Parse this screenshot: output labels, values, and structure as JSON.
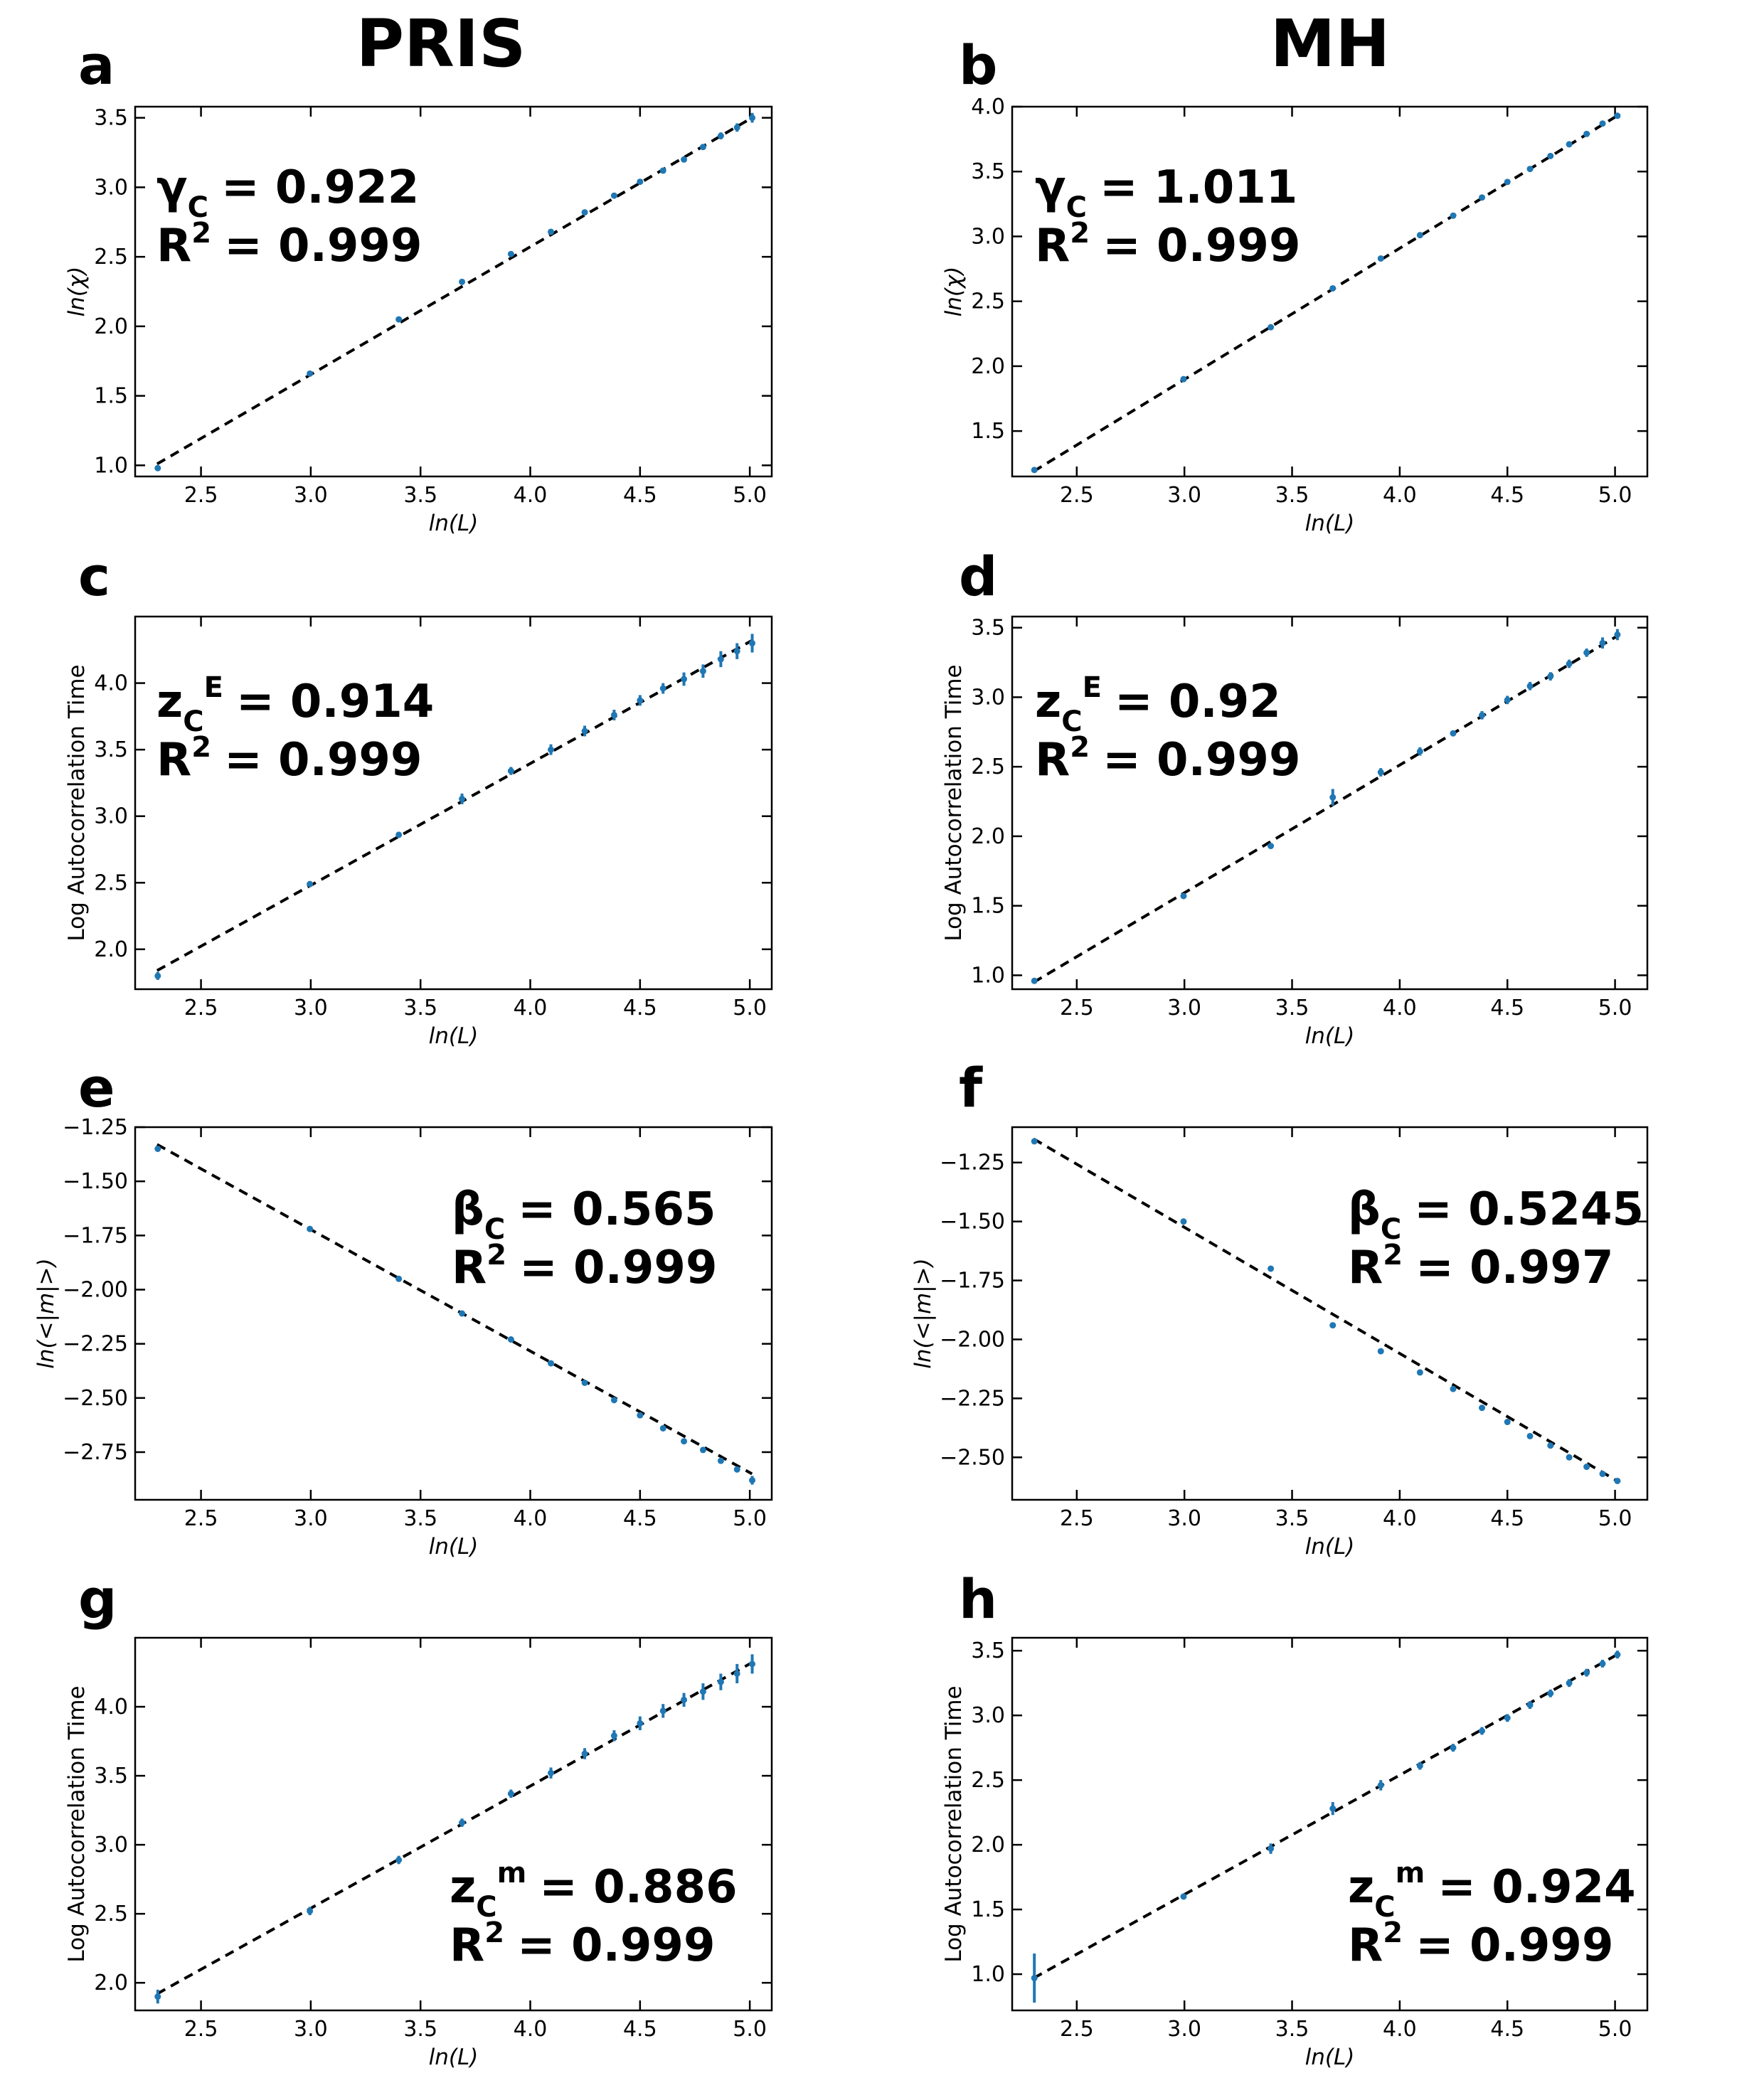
{
  "column_titles": [
    "PRIS",
    "MH"
  ],
  "colors": {
    "points": "#1f77b4",
    "fit_line": "#000000"
  },
  "chart_data": [
    {
      "id": "a",
      "type": "scatter",
      "letter": "a",
      "xlabel": "ln(L)",
      "ylabel": "ln(χ)",
      "xlim": [
        2.2,
        5.1
      ],
      "ylim": [
        0.92,
        3.58
      ],
      "xticks": [
        2.5,
        3.0,
        3.5,
        4.0,
        4.5,
        5.0
      ],
      "yticks": [
        1.0,
        1.5,
        2.0,
        2.5,
        3.0,
        3.5
      ],
      "tick_decimals": 1,
      "annotation": {
        "symbol": "γ",
        "sub": "C",
        "sup": "",
        "value": "= 0.922",
        "r2_label": "R",
        "r2_sup": "2",
        "r2_value": "= 0.999"
      },
      "fit": {
        "x": [
          2.3,
          5.01
        ],
        "y": [
          1.01,
          3.5
        ]
      },
      "points": {
        "x": [
          2.303,
          2.996,
          3.401,
          3.689,
          3.912,
          4.094,
          4.248,
          4.382,
          4.5,
          4.605,
          4.7,
          4.787,
          4.868,
          4.942,
          5.011
        ],
        "y": [
          0.98,
          1.66,
          2.05,
          2.32,
          2.52,
          2.68,
          2.82,
          2.94,
          3.04,
          3.12,
          3.2,
          3.29,
          3.37,
          3.43,
          3.5
        ],
        "err": [
          0.005,
          0.005,
          0.01,
          0.01,
          0.01,
          0.01,
          0.01,
          0.015,
          0.015,
          0.015,
          0.02,
          0.02,
          0.025,
          0.03,
          0.035
        ]
      }
    },
    {
      "id": "b",
      "type": "scatter",
      "letter": "b",
      "xlabel": "ln(L)",
      "ylabel": "ln(χ)",
      "xlim": [
        2.2,
        5.15
      ],
      "ylim": [
        1.15,
        4.0
      ],
      "xticks": [
        2.5,
        3.0,
        3.5,
        4.0,
        4.5,
        5.0
      ],
      "yticks": [
        1.5,
        2.0,
        2.5,
        3.0,
        3.5,
        4.0
      ],
      "tick_decimals": 1,
      "annotation": {
        "symbol": "γ",
        "sub": "C",
        "sup": "",
        "value": "= 1.011",
        "r2_label": "R",
        "r2_sup": "2",
        "r2_value": "= 0.999"
      },
      "fit": {
        "x": [
          2.3,
          5.01
        ],
        "y": [
          1.19,
          3.93
        ]
      },
      "points": {
        "x": [
          2.303,
          2.996,
          3.401,
          3.689,
          3.912,
          4.094,
          4.248,
          4.382,
          4.5,
          4.605,
          4.7,
          4.787,
          4.868,
          4.942,
          5.011
        ],
        "y": [
          1.2,
          1.9,
          2.3,
          2.6,
          2.83,
          3.01,
          3.16,
          3.3,
          3.42,
          3.52,
          3.62,
          3.71,
          3.79,
          3.87,
          3.93
        ],
        "err": [
          0.005,
          0.005,
          0.005,
          0.01,
          0.01,
          0.01,
          0.01,
          0.01,
          0.01,
          0.01,
          0.01,
          0.01,
          0.01,
          0.01,
          0.015
        ]
      }
    },
    {
      "id": "c",
      "type": "scatter",
      "letter": "c",
      "xlabel": "ln(L)",
      "ylabel": "Log Autocorrelation Time",
      "xlim": [
        2.2,
        5.1
      ],
      "ylim": [
        1.7,
        4.5
      ],
      "xticks": [
        2.5,
        3.0,
        3.5,
        4.0,
        4.5,
        5.0
      ],
      "yticks": [
        2.0,
        2.5,
        3.0,
        3.5,
        4.0
      ],
      "tick_decimals": 1,
      "annotation": {
        "symbol": "z",
        "sub": "C",
        "sup": "E",
        "value": "= 0.914",
        "r2_label": "R",
        "r2_sup": "2",
        "r2_value": "= 0.999"
      },
      "fit": {
        "x": [
          2.3,
          5.01
        ],
        "y": [
          1.84,
          4.32
        ]
      },
      "points": {
        "x": [
          2.303,
          2.996,
          3.401,
          3.689,
          3.912,
          4.094,
          4.248,
          4.382,
          4.5,
          4.605,
          4.7,
          4.787,
          4.868,
          4.942,
          5.011
        ],
        "y": [
          1.8,
          2.49,
          2.86,
          3.13,
          3.34,
          3.5,
          3.64,
          3.76,
          3.87,
          3.96,
          4.03,
          4.09,
          4.18,
          4.24,
          4.3
        ],
        "err": [
          0.03,
          0.01,
          0.02,
          0.04,
          0.03,
          0.04,
          0.04,
          0.04,
          0.04,
          0.04,
          0.05,
          0.05,
          0.06,
          0.06,
          0.07
        ]
      }
    },
    {
      "id": "d",
      "type": "scatter",
      "letter": "d",
      "xlabel": "ln(L)",
      "ylabel": "Log Autocorrelation Time",
      "xlim": [
        2.2,
        5.15
      ],
      "ylim": [
        0.9,
        3.58
      ],
      "xticks": [
        2.5,
        3.0,
        3.5,
        4.0,
        4.5,
        5.0
      ],
      "yticks": [
        1.0,
        1.5,
        2.0,
        2.5,
        3.0,
        3.5
      ],
      "tick_decimals": 1,
      "annotation": {
        "symbol": "z",
        "sub": "C",
        "sup": "E",
        "value": "= 0.92",
        "r2_label": "R",
        "r2_sup": "2",
        "r2_value": "= 0.999"
      },
      "fit": {
        "x": [
          2.3,
          5.01
        ],
        "y": [
          0.95,
          3.44
        ]
      },
      "points": {
        "x": [
          2.303,
          2.996,
          3.401,
          3.689,
          3.912,
          4.094,
          4.248,
          4.382,
          4.5,
          4.605,
          4.7,
          4.787,
          4.868,
          4.942,
          5.011
        ],
        "y": [
          0.96,
          1.57,
          1.93,
          2.28,
          2.46,
          2.61,
          2.74,
          2.87,
          2.98,
          3.08,
          3.15,
          3.24,
          3.32,
          3.39,
          3.45
        ],
        "err": [
          0.01,
          0.01,
          0.02,
          0.06,
          0.03,
          0.03,
          0.02,
          0.03,
          0.03,
          0.03,
          0.03,
          0.03,
          0.03,
          0.04,
          0.04
        ]
      }
    },
    {
      "id": "e",
      "type": "scatter",
      "letter": "e",
      "xlabel": "ln(L)",
      "ylabel": "ln(<|m|>)",
      "xlim": [
        2.2,
        5.1
      ],
      "ylim": [
        -2.97,
        -1.25
      ],
      "xticks": [
        2.5,
        3.0,
        3.5,
        4.0,
        4.5,
        5.0
      ],
      "yticks": [
        -1.25,
        -1.5,
        -1.75,
        -2.0,
        -2.25,
        -2.5,
        -2.75
      ],
      "tick_decimals": 2,
      "annotation": {
        "symbol": "β",
        "sub": "C",
        "sup": "",
        "value": "= 0.565",
        "r2_label": "R",
        "r2_sup": "2",
        "r2_value": "= 0.999"
      },
      "fit": {
        "x": [
          2.3,
          5.01
        ],
        "y": [
          -1.33,
          -2.85
        ]
      },
      "points": {
        "x": [
          2.303,
          2.996,
          3.401,
          3.689,
          3.912,
          4.094,
          4.248,
          4.382,
          4.5,
          4.605,
          4.7,
          4.787,
          4.868,
          4.942,
          5.011
        ],
        "y": [
          -1.35,
          -1.72,
          -1.95,
          -2.11,
          -2.23,
          -2.34,
          -2.43,
          -2.51,
          -2.58,
          -2.64,
          -2.7,
          -2.74,
          -2.79,
          -2.83,
          -2.88
        ],
        "err": [
          0.005,
          0.005,
          0.005,
          0.005,
          0.005,
          0.005,
          0.005,
          0.005,
          0.01,
          0.01,
          0.01,
          0.01,
          0.01,
          0.01,
          0.02
        ]
      }
    },
    {
      "id": "f",
      "type": "scatter",
      "letter": "f",
      "xlabel": "ln(L)",
      "ylabel": "ln(<|m|>)",
      "xlim": [
        2.2,
        5.15
      ],
      "ylim": [
        -2.68,
        -1.1
      ],
      "xticks": [
        2.5,
        3.0,
        3.5,
        4.0,
        4.5,
        5.0
      ],
      "yticks": [
        -1.25,
        -1.5,
        -1.75,
        -2.0,
        -2.25,
        -2.5
      ],
      "tick_decimals": 2,
      "annotation": {
        "symbol": "β",
        "sub": "C",
        "sup": "",
        "value": "= 0.5245",
        "r2_label": "R",
        "r2_sup": "2",
        "r2_value": "= 0.997"
      },
      "fit": {
        "x": [
          2.3,
          5.01
        ],
        "y": [
          -1.15,
          -2.6
        ]
      },
      "points": {
        "x": [
          2.303,
          2.996,
          3.401,
          3.689,
          3.912,
          4.094,
          4.248,
          4.382,
          4.5,
          4.605,
          4.7,
          4.787,
          4.868,
          4.942,
          5.011
        ],
        "y": [
          -1.16,
          -1.5,
          -1.7,
          -1.94,
          -2.05,
          -2.14,
          -2.21,
          -2.29,
          -2.35,
          -2.41,
          -2.45,
          -2.5,
          -2.54,
          -2.57,
          -2.6
        ],
        "err": [
          0.005,
          0.005,
          0.005,
          0.005,
          0.005,
          0.005,
          0.005,
          0.005,
          0.005,
          0.005,
          0.005,
          0.005,
          0.005,
          0.005,
          0.01
        ]
      }
    },
    {
      "id": "g",
      "type": "scatter",
      "letter": "g",
      "xlabel": "ln(L)",
      "ylabel": "Log Autocorrelation Time",
      "xlim": [
        2.2,
        5.1
      ],
      "ylim": [
        1.8,
        4.5
      ],
      "xticks": [
        2.5,
        3.0,
        3.5,
        4.0,
        4.5,
        5.0
      ],
      "yticks": [
        2.0,
        2.5,
        3.0,
        3.5,
        4.0
      ],
      "tick_decimals": 1,
      "annotation": {
        "symbol": "z",
        "sub": "C",
        "sup": "m",
        "value": "= 0.886",
        "r2_label": "R",
        "r2_sup": "2",
        "r2_value": "= 0.999"
      },
      "fit": {
        "x": [
          2.3,
          5.01
        ],
        "y": [
          1.92,
          4.32
        ]
      },
      "points": {
        "x": [
          2.303,
          2.996,
          3.401,
          3.689,
          3.912,
          4.094,
          4.248,
          4.382,
          4.5,
          4.605,
          4.7,
          4.787,
          4.868,
          4.942,
          5.011
        ],
        "y": [
          1.9,
          2.52,
          2.89,
          3.16,
          3.37,
          3.52,
          3.66,
          3.79,
          3.88,
          3.97,
          4.05,
          4.11,
          4.18,
          4.24,
          4.31
        ],
        "err": [
          0.05,
          0.03,
          0.03,
          0.03,
          0.03,
          0.04,
          0.04,
          0.04,
          0.05,
          0.05,
          0.05,
          0.06,
          0.06,
          0.07,
          0.07
        ]
      }
    },
    {
      "id": "h",
      "type": "scatter",
      "letter": "h",
      "xlabel": "ln(L)",
      "ylabel": "Log Autocorrelation Time",
      "xlim": [
        2.2,
        5.15
      ],
      "ylim": [
        0.72,
        3.6
      ],
      "xticks": [
        2.5,
        3.0,
        3.5,
        4.0,
        4.5,
        5.0
      ],
      "yticks": [
        1.0,
        1.5,
        2.0,
        2.5,
        3.0,
        3.5
      ],
      "tick_decimals": 1,
      "annotation": {
        "symbol": "z",
        "sub": "C",
        "sup": "m",
        "value": "= 0.924",
        "r2_label": "R",
        "r2_sup": "2",
        "r2_value": "= 0.999"
      },
      "fit": {
        "x": [
          2.3,
          5.01
        ],
        "y": [
          0.97,
          3.47
        ]
      },
      "points": {
        "x": [
          2.303,
          2.996,
          3.401,
          3.689,
          3.912,
          4.094,
          4.248,
          4.382,
          4.5,
          4.605,
          4.7,
          4.787,
          4.868,
          4.942,
          5.011
        ],
        "y": [
          0.97,
          1.6,
          1.97,
          2.28,
          2.46,
          2.61,
          2.75,
          2.88,
          2.98,
          3.08,
          3.17,
          3.25,
          3.33,
          3.4,
          3.47
        ],
        "err": [
          0.19,
          0.01,
          0.04,
          0.05,
          0.04,
          0.03,
          0.03,
          0.03,
          0.03,
          0.03,
          0.03,
          0.03,
          0.03,
          0.03,
          0.03
        ]
      }
    }
  ]
}
